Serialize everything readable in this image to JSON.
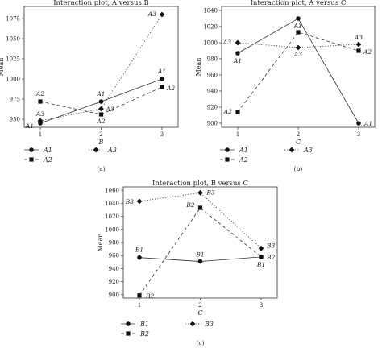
{
  "chart_data": [
    {
      "type": "line",
      "panel": "(a)",
      "title": "Interaction plot, A versus B",
      "xlabel": "B",
      "ylabel": "Mean",
      "categories": [
        "1",
        "2",
        "3"
      ],
      "ylim": [
        940,
        1090
      ],
      "yticks": [
        950,
        975,
        1000,
        1025,
        1050,
        1075
      ],
      "series": [
        {
          "name": "A1",
          "values": [
            945,
            972,
            1000
          ]
        },
        {
          "name": "A2",
          "values": [
            972,
            956,
            990
          ]
        },
        {
          "name": "A3",
          "values": [
            948,
            963,
            1080
          ]
        }
      ],
      "legend": [
        "A1",
        "A2",
        "A3"
      ]
    },
    {
      "type": "line",
      "panel": "(b)",
      "title": "Interaction plot, A versus C",
      "xlabel": "C",
      "ylabel": "Mean",
      "categories": [
        "1",
        "2",
        "3"
      ],
      "ylim": [
        895,
        1045
      ],
      "yticks": [
        900,
        920,
        940,
        960,
        980,
        1000,
        1020,
        1040
      ],
      "series": [
        {
          "name": "A1",
          "values": [
            987,
            1030,
            900
          ]
        },
        {
          "name": "A2",
          "values": [
            914,
            1013,
            990
          ]
        },
        {
          "name": "A3",
          "values": [
            1000,
            994,
            998
          ]
        }
      ],
      "legend": [
        "A1",
        "A2",
        "A3"
      ]
    },
    {
      "type": "line",
      "panel": "(c)",
      "title": "Interaction plot, B versus C",
      "xlabel": "C",
      "ylabel": "Mean",
      "categories": [
        "1",
        "2",
        "3"
      ],
      "ylim": [
        895,
        1065
      ],
      "yticks": [
        900,
        920,
        940,
        960,
        980,
        1000,
        1020,
        1040,
        1060
      ],
      "series": [
        {
          "name": "B1",
          "values": [
            957,
            951,
            958
          ]
        },
        {
          "name": "B2",
          "values": [
            899,
            1033,
            958
          ]
        },
        {
          "name": "B3",
          "values": [
            1043,
            1056,
            971
          ]
        }
      ],
      "legend": [
        "B1",
        "B2",
        "B3"
      ]
    }
  ]
}
